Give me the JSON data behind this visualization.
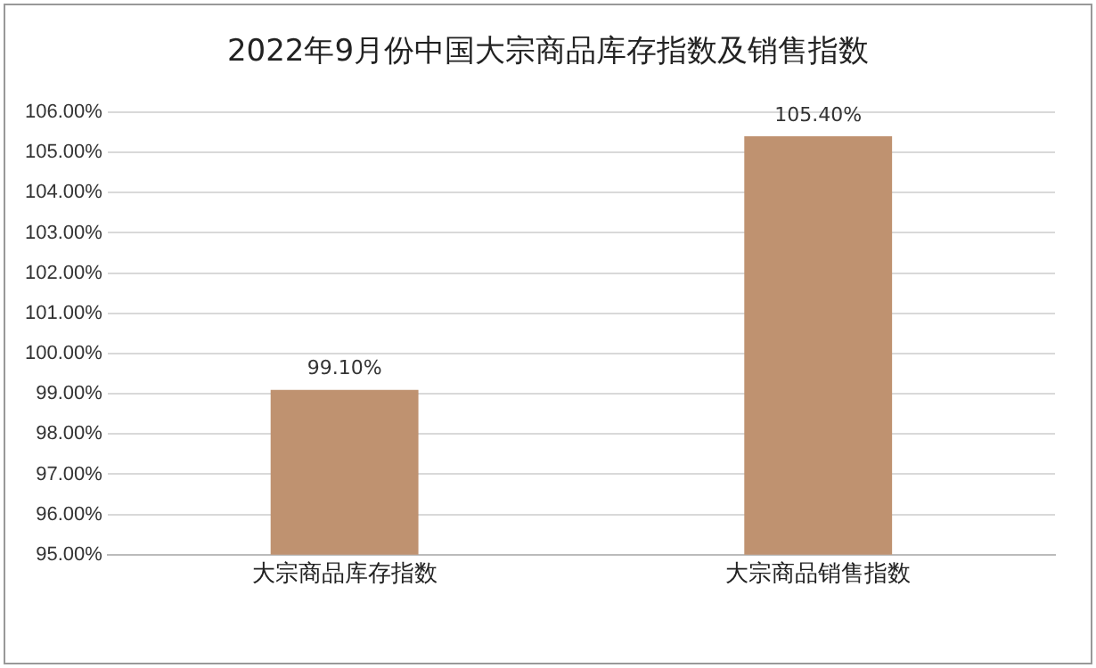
{
  "chart_data": {
    "type": "bar",
    "title": "2022年9月份中国大宗商品库存指数及销售指数",
    "categories": [
      "大宗商品库存指数",
      "大宗商品销售指数"
    ],
    "values": [
      99.1,
      105.4
    ],
    "value_labels": [
      "99.10%",
      "105.40%"
    ],
    "color": "#bf9270",
    "ylim": [
      95,
      106
    ],
    "yticks": [
      {
        "value": 95,
        "label": "95.00%"
      },
      {
        "value": 96,
        "label": "96.00%"
      },
      {
        "value": 97,
        "label": "97.00%"
      },
      {
        "value": 98,
        "label": "98.00%"
      },
      {
        "value": 99,
        "label": "99.00%"
      },
      {
        "value": 100,
        "label": "100.00%"
      },
      {
        "value": 101,
        "label": "101.00%"
      },
      {
        "value": 102,
        "label": "102.00%"
      },
      {
        "value": 103,
        "label": "103.00%"
      },
      {
        "value": 104,
        "label": "104.00%"
      },
      {
        "value": 105,
        "label": "105.00%"
      },
      {
        "value": 106,
        "label": "106.00%"
      }
    ],
    "grid": "y"
  }
}
